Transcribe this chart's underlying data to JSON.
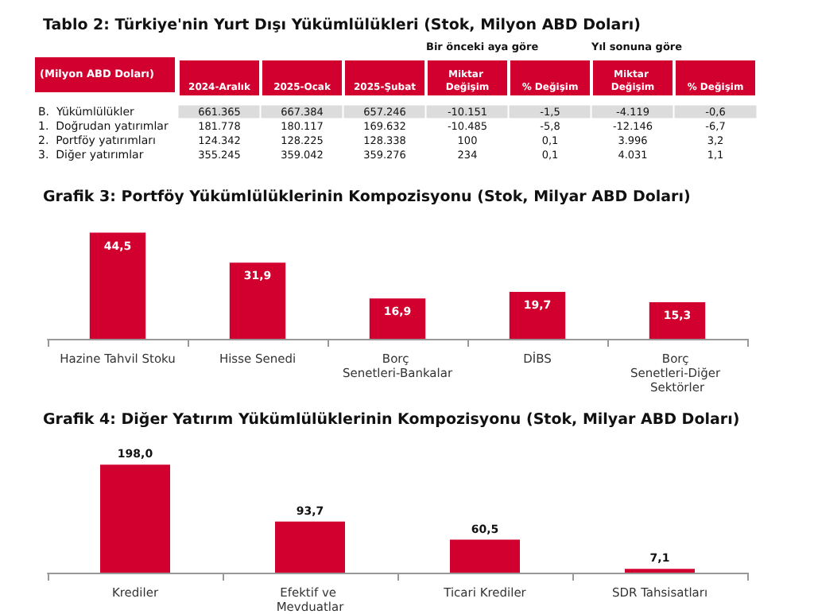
{
  "chart_data": [
    {
      "type": "heatmap",
      "title": "Tablo 2: Türkiye'nin Yurt Dışı Yükümlülükleri (Stok, Milyon ABD Doları)",
      "ylabel": "(Milyon ABD Doları)",
      "annotations": [
        "Bir önceki aya göre",
        "Yıl sonuna göre"
      ],
      "categories": [
        "2024-Aralık",
        "2025-Ocak",
        "2025-Şubat",
        "Miktar Değişim",
        "% Değişim",
        "Miktar Değişim",
        "% Değişim"
      ],
      "y_categories": [
        "B.  Yükümlülükler",
        "1.  Doğrudan yatırımlar",
        "2.  Portföy yatırımları",
        "3.  Diğer yatırımlar"
      ],
      "cells": [
        [
          661365,
          667384,
          657246,
          -10151,
          -1.5,
          -4119,
          -0.6
        ],
        [
          181778,
          180117,
          169632,
          -10485,
          -5.8,
          -12146,
          -6.7
        ],
        [
          124342,
          128225,
          128338,
          100,
          0.1,
          3996,
          3.2
        ],
        [
          355245,
          359042,
          359276,
          234,
          0.1,
          4031,
          1.1
        ]
      ],
      "cell_labels": [
        [
          "661.365",
          "667.384",
          "657.246",
          "-10.151",
          "-1,5",
          "-4.119",
          "-0,6"
        ],
        [
          "181.778",
          "180.117",
          "169.632",
          "-10.485",
          "-5,8",
          "-12.146",
          "-6,7"
        ],
        [
          "124.342",
          "128.225",
          "128.338",
          "100",
          "0,1",
          "3.996",
          "3,2"
        ],
        [
          "355.245",
          "359.042",
          "359.276",
          "234",
          "0,1",
          "4.031",
          "1,1"
        ]
      ]
    },
    {
      "type": "bar",
      "title": "Grafik 3: Portföy Yükümlülüklerinin Kompozisyonu (Stok, Milyar ABD Doları)",
      "categories": [
        "Hazine Tahvil Stoku",
        "Hisse Senedi",
        "Borç Senetleri-Bankalar",
        "DİBS",
        "Borç Senetleri-Diğer Sektörler"
      ],
      "values": [
        44.5,
        31.9,
        16.9,
        19.7,
        15.3
      ],
      "value_labels": [
        "44,5",
        "31,9",
        "16,9",
        "19,7",
        "15,3"
      ],
      "color": "#d2002f",
      "tick_labels": "x"
    },
    {
      "type": "bar",
      "title": "Grafik 4: Diğer Yatırım Yükümlülüklerinin Kompozisyonu (Stok, Milyar ABD Doları)",
      "categories": [
        "Krediler",
        "Efektif ve Mevduatlar",
        "Ticari Krediler",
        "SDR Tahsisatları"
      ],
      "values": [
        198.0,
        93.7,
        60.5,
        7.1
      ],
      "value_labels": [
        "198,0",
        "93,7",
        "60,5",
        "7,1"
      ],
      "color": "#d2002f",
      "tick_labels": "x"
    }
  ]
}
